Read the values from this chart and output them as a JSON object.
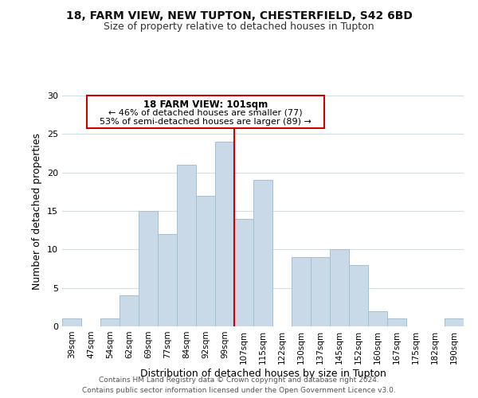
{
  "title1": "18, FARM VIEW, NEW TUPTON, CHESTERFIELD, S42 6BD",
  "title2": "Size of property relative to detached houses in Tupton",
  "xlabel": "Distribution of detached houses by size in Tupton",
  "ylabel": "Number of detached properties",
  "bar_labels": [
    "39sqm",
    "47sqm",
    "54sqm",
    "62sqm",
    "69sqm",
    "77sqm",
    "84sqm",
    "92sqm",
    "99sqm",
    "107sqm",
    "115sqm",
    "122sqm",
    "130sqm",
    "137sqm",
    "145sqm",
    "152sqm",
    "160sqm",
    "167sqm",
    "175sqm",
    "182sqm",
    "190sqm"
  ],
  "bar_values": [
    1,
    0,
    1,
    4,
    15,
    12,
    21,
    17,
    24,
    14,
    19,
    0,
    9,
    9,
    10,
    8,
    2,
    1,
    0,
    0,
    1
  ],
  "bar_color": "#c9d9e8",
  "bar_edge_color": "#a8bfcf",
  "ylim": [
    0,
    30
  ],
  "yticks": [
    0,
    5,
    10,
    15,
    20,
    25,
    30
  ],
  "property_line_x": 8.5,
  "property_line_color": "#cc0000",
  "annotation_title": "18 FARM VIEW: 101sqm",
  "annotation_line1": "← 46% of detached houses are smaller (77)",
  "annotation_line2": "53% of semi-detached houses are larger (89) →",
  "annotation_box_edge": "#cc0000",
  "footer_line1": "Contains HM Land Registry data © Crown copyright and database right 2024.",
  "footer_line2": "Contains public sector information licensed under the Open Government Licence v3.0.",
  "background_color": "#ffffff",
  "grid_color": "#d0dce8"
}
